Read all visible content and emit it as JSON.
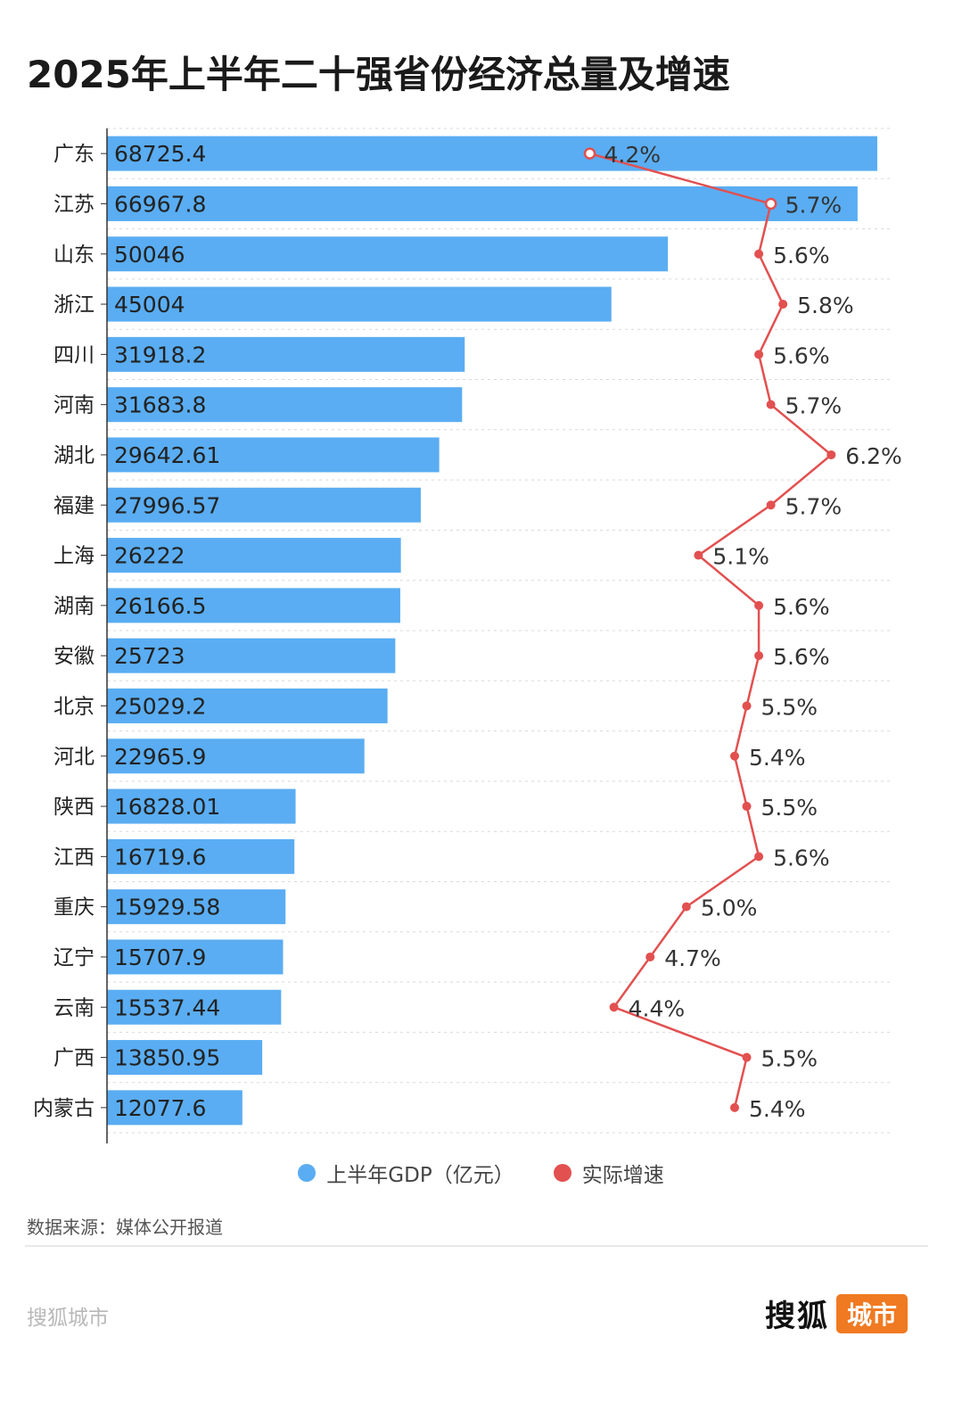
{
  "title": "2025年上半年二十强省份经济总量及增速",
  "chart_data": {
    "type": "bar",
    "orientation": "horizontal",
    "categories": [
      "广东",
      "江苏",
      "山东",
      "浙江",
      "四川",
      "河南",
      "湖北",
      "福建",
      "上海",
      "湖南",
      "安徽",
      "北京",
      "河北",
      "陕西",
      "江西",
      "重庆",
      "辽宁",
      "云南",
      "广西",
      "内蒙古"
    ],
    "series": [
      {
        "name": "上半年GDP（亿元）",
        "type": "bar",
        "color": "#5aadf2",
        "values": [
          68725.4,
          66967.8,
          50046,
          45004,
          31918.2,
          31683.8,
          29642.61,
          27996.57,
          26222,
          26166.5,
          25723,
          25029.2,
          22965.9,
          16828.01,
          16719.6,
          15929.58,
          15707.9,
          15537.44,
          13850.95,
          12077.6
        ],
        "labels": [
          "68725.4",
          "66967.8",
          "50046",
          "45004",
          "31918.2",
          "31683.8",
          "29642.61",
          "27996.57",
          "26222",
          "26166.5",
          "25723",
          "25029.2",
          "22965.9",
          "16828.01",
          "16719.6",
          "15929.58",
          "15707.9",
          "15537.44",
          "13850.95",
          "12077.6"
        ]
      },
      {
        "name": "实际增速",
        "type": "line",
        "color": "#e25050",
        "values": [
          4.2,
          5.7,
          5.6,
          5.8,
          5.6,
          5.7,
          6.2,
          5.7,
          5.1,
          5.6,
          5.6,
          5.5,
          5.4,
          5.5,
          5.6,
          5.0,
          4.7,
          4.4,
          5.5,
          5.4
        ],
        "labels": [
          "4.2%",
          "5.7%",
          "5.6%",
          "5.8%",
          "5.6%",
          "5.7%",
          "6.2%",
          "5.7%",
          "5.1%",
          "5.6%",
          "5.6%",
          "5.5%",
          "5.4%",
          "5.5%",
          "5.6%",
          "5.0%",
          "4.7%",
          "4.4%",
          "5.5%",
          "5.4%"
        ]
      }
    ],
    "xlim_bar": [
      0,
      70000
    ],
    "xlim_line": [
      0.2,
      6.7
    ],
    "grid": true,
    "legend_position": "bottom-center"
  },
  "legend": {
    "gdp_label": "上半年GDP（亿元）",
    "growth_label": "实际增速",
    "gdp_color": "#5aadf2",
    "growth_color": "#e25050"
  },
  "source": "数据来源：媒体公开报道",
  "footer": {
    "left_text": "搜狐城市",
    "logo_main": "搜狐",
    "logo_tag": "城市",
    "logo_tag_color": "#f07a22"
  }
}
